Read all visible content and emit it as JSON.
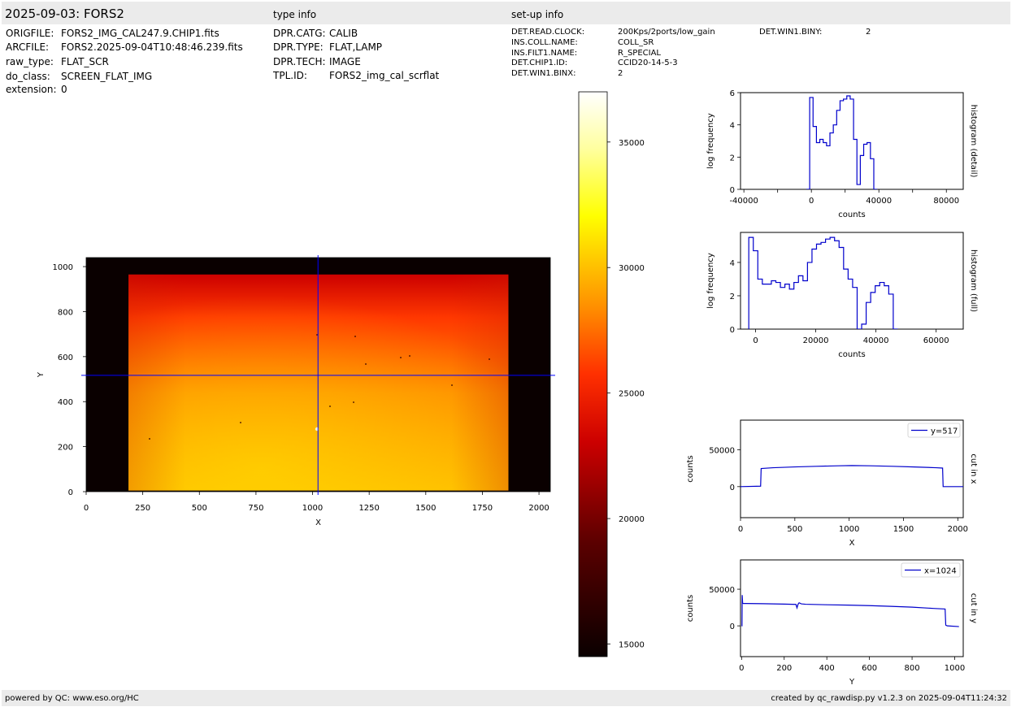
{
  "header": {
    "title": "2025-09-03: FORS2",
    "type_info_title": "type info",
    "setup_info_title": "set-up info"
  },
  "file_info": [
    {
      "key": "ORIGFILE:",
      "value": "FORS2_IMG_CAL247.9.CHIP1.fits"
    },
    {
      "key": "ARCFILE:",
      "value": "FORS2.2025-09-04T10:48:46.239.fits"
    },
    {
      "key": "raw_type:",
      "value": "FLAT_SCR"
    },
    {
      "key": "do_class:",
      "value": "SCREEN_FLAT_IMG"
    },
    {
      "key": "extension:",
      "value": "0"
    }
  ],
  "type_info": [
    {
      "key": "DPR.CATG:",
      "value": "CALIB"
    },
    {
      "key": "DPR.TYPE:",
      "value": "FLAT,LAMP"
    },
    {
      "key": "DPR.TECH:",
      "value": "IMAGE"
    },
    {
      "key": "TPL.ID:",
      "value": "FORS2_img_cal_scrflat"
    }
  ],
  "setup_info": [
    {
      "key": "DET.READ.CLOCK:",
      "value": "200Kps/2ports/low_gain"
    },
    {
      "key": "INS.COLL.NAME:",
      "value": "COLL_SR"
    },
    {
      "key": "INS.FILT1.NAME:",
      "value": "R_SPECIAL"
    },
    {
      "key": "DET.CHIP1.ID:",
      "value": "CCID20-14-5-3"
    },
    {
      "key": "DET.WIN1.BINX:",
      "value": "2"
    }
  ],
  "setup_info_extra": {
    "key": "DET.WIN1.BINY:",
    "value": "2"
  },
  "footer": {
    "left": "powered by QC: www.eso.org/HC",
    "right": "created by qc_rawdisp.py v1.2.3 on 2025-09-04T11:24:32"
  },
  "chart_data": [
    {
      "id": "image",
      "type": "heatmap",
      "xlabel": "X",
      "ylabel": "Y",
      "xlim": [
        0,
        2050
      ],
      "ylim": [
        0,
        1040
      ],
      "xticks": [
        0,
        250,
        500,
        750,
        1000,
        1250,
        1500,
        1750,
        2000
      ],
      "yticks": [
        0,
        200,
        400,
        600,
        800,
        1000
      ],
      "illuminated_region": {
        "x": [
          187,
          1865
        ],
        "y": [
          5,
          965
        ]
      },
      "crosshair": {
        "x": 1024,
        "y": 517
      },
      "colormap": "hot",
      "colors": {
        "crosshair": "#0000ff",
        "background": "#0a0000"
      },
      "colorbar": {
        "range": [
          14500,
          37000
        ],
        "ticks": [
          15000,
          20000,
          25000,
          30000,
          35000
        ]
      }
    },
    {
      "id": "hist_detail",
      "type": "line",
      "step": true,
      "xlabel": "counts",
      "ylabel": "log frequency",
      "side_label": "histogram (detail)",
      "xlim": [
        -42000,
        90000
      ],
      "ylim": [
        0,
        6
      ],
      "xticks": [
        -40000,
        0,
        40000,
        80000
      ],
      "xticks_minor": [
        -20000,
        20000,
        60000
      ],
      "yticks": [
        0,
        2,
        4,
        6
      ],
      "color": "#0000cc",
      "x": [
        -2000,
        0,
        2000,
        4000,
        6000,
        8000,
        10000,
        12000,
        14000,
        16000,
        18000,
        20000,
        22000,
        24000,
        26000,
        28000,
        30000,
        32000,
        34000,
        36000,
        38000,
        40000,
        42000,
        44000,
        46000
      ],
      "y": [
        0,
        5.7,
        3.9,
        2.9,
        3.1,
        2.9,
        2.7,
        3.5,
        4.0,
        4.9,
        5.5,
        5.6,
        5.8,
        5.6,
        3.1,
        0.3,
        2.1,
        2.8,
        2.9,
        1.9,
        0,
        null,
        null,
        null,
        null
      ]
    },
    {
      "id": "hist_full",
      "type": "line",
      "step": true,
      "xlabel": "counts",
      "ylabel": "log frequency",
      "side_label": "histogram (full)",
      "xlim": [
        -5000,
        69000
      ],
      "ylim": [
        0,
        5.8
      ],
      "xticks": [
        0,
        20000,
        40000,
        60000
      ],
      "yticks": [
        0,
        2,
        4
      ],
      "color": "#0000cc",
      "x": [
        -1500,
        0,
        1500,
        3000,
        4500,
        6000,
        7500,
        9000,
        10500,
        12000,
        13500,
        15000,
        16500,
        18000,
        19500,
        21000,
        22500,
        24000,
        25500,
        27000,
        28500,
        30000,
        31500,
        33000,
        34500,
        36000,
        37500,
        39000,
        40500,
        42000,
        43500,
        45000,
        46500
      ],
      "y": [
        5.5,
        4.7,
        3.0,
        2.7,
        2.7,
        2.9,
        2.8,
        2.5,
        2.7,
        2.4,
        2.8,
        3.2,
        2.9,
        4.0,
        4.8,
        5.1,
        5.2,
        5.4,
        5.5,
        5.3,
        4.9,
        3.6,
        3.0,
        2.5,
        0,
        0.3,
        1.6,
        2.2,
        2.6,
        2.8,
        2.6,
        2.1,
        0
      ]
    },
    {
      "id": "cut_x",
      "type": "line",
      "xlabel": "X",
      "ylabel": "counts",
      "side_label": "cut in x",
      "legend": "y=517",
      "legend_position": "top-right",
      "xlim": [
        0,
        2050
      ],
      "ylim": [
        -42000,
        90000
      ],
      "xticks": [
        0,
        500,
        1000,
        1500,
        2000
      ],
      "yticks": [
        0,
        50000
      ],
      "color": "#0000cc",
      "x": [
        0,
        185,
        190,
        300,
        500,
        700,
        900,
        1024,
        1200,
        1400,
        1600,
        1800,
        1860,
        1865,
        2050
      ],
      "y": [
        0,
        600,
        24500,
        25600,
        26700,
        27500,
        28200,
        28500,
        28200,
        27500,
        26600,
        25600,
        25100,
        0,
        0
      ]
    },
    {
      "id": "cut_y",
      "type": "line",
      "xlabel": "Y",
      "ylabel": "counts",
      "side_label": "cut in y",
      "legend": "x=1024",
      "legend_position": "top-right",
      "xlim": [
        -5,
        1040
      ],
      "ylim": [
        -42000,
        90000
      ],
      "xticks": [
        0,
        200,
        400,
        600,
        800,
        1000
      ],
      "yticks": [
        0,
        50000
      ],
      "color": "#0000cc",
      "x": [
        0,
        2,
        3,
        5,
        8,
        20,
        100,
        200,
        255,
        260,
        265,
        270,
        280,
        300,
        400,
        500,
        600,
        700,
        800,
        900,
        955,
        958,
        965,
        1020
      ],
      "y": [
        0,
        0,
        42000,
        31000,
        30500,
        30500,
        30200,
        29700,
        29300,
        24500,
        29500,
        31500,
        30000,
        29500,
        28800,
        28300,
        27600,
        26600,
        25500,
        23800,
        23000,
        1000,
        0,
        -1000
      ]
    }
  ]
}
